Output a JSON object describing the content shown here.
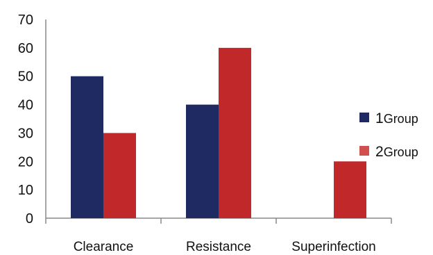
{
  "chart_data": {
    "type": "bar",
    "title": "",
    "xlabel": "",
    "ylabel": "",
    "categories": [
      "Clearance",
      "Resistance",
      "Superinfection"
    ],
    "series": [
      {
        "name": "1Group",
        "values": [
          50,
          40,
          0
        ],
        "color": "#1f2a63"
      },
      {
        "name": "2Group",
        "values": [
          30,
          60,
          20
        ],
        "color": "#c0282a"
      }
    ],
    "ylim": [
      0,
      70
    ],
    "yticks": [
      0,
      10,
      20,
      30,
      40,
      50,
      60,
      70
    ],
    "grid": false,
    "legend": {
      "placement": "right",
      "entries": [
        {
          "num": "1",
          "text": "Group",
          "color": "#1f2a63"
        },
        {
          "num": "2",
          "text": "Group",
          "color": "#d0504f"
        }
      ]
    }
  }
}
